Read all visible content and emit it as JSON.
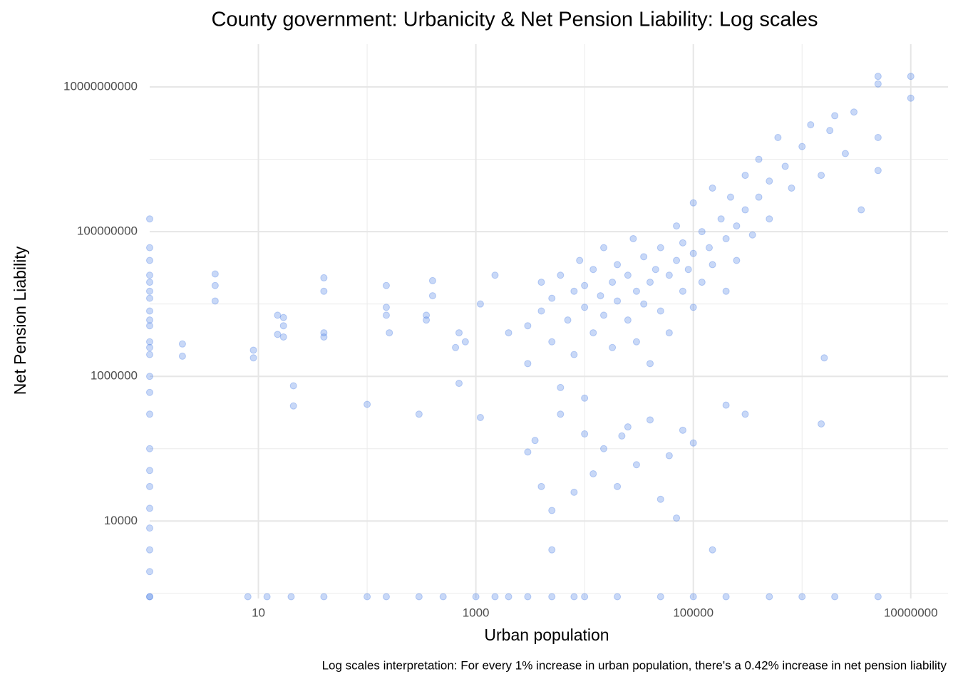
{
  "chart_data": {
    "type": "scatter",
    "title": "County government: Urbanicity & Net Pension Liability: Log scales",
    "x_label": "Urban population",
    "y_label": "Net Pension Liability",
    "caption": "Log scales interpretation: For every 1% increase in urban population, there's a 0.42% increase in net pension liability",
    "x_scale": "log",
    "y_scale": "log",
    "grid": true,
    "color": "#4a7ee6",
    "xlim": [
      1,
      22000000
    ],
    "ylim": [
      850,
      39000000000
    ],
    "xticks": [
      10,
      1000,
      100000,
      10000000
    ],
    "yticks": [
      10000,
      1000000,
      100000000,
      10000000000
    ],
    "x_minor_grid": [
      100,
      10000,
      1000000
    ],
    "y_minor_grid": [
      1000,
      100000,
      10000000,
      1000000000
    ],
    "x": [
      1,
      1,
      1,
      1,
      1,
      1,
      1,
      1,
      1,
      1,
      1,
      1,
      1,
      1,
      1,
      1,
      1,
      1,
      1,
      1,
      1,
      1,
      1,
      1,
      2,
      2,
      4,
      4,
      4,
      9,
      9,
      17,
      17,
      17,
      40,
      40,
      40,
      40,
      15,
      15,
      21,
      21,
      100,
      150,
      150,
      150,
      160,
      300,
      350,
      350,
      400,
      400,
      650,
      700,
      700,
      800,
      1100,
      1100,
      1500,
      2000,
      3000,
      3000,
      4000,
      4000,
      5000,
      5000,
      6000,
      6000,
      7000,
      8000,
      8000,
      9000,
      10000,
      10000,
      10000,
      12000,
      12000,
      14000,
      15000,
      15000,
      18000,
      18000,
      20000,
      20000,
      22000,
      25000,
      25000,
      28000,
      30000,
      30000,
      35000,
      35000,
      40000,
      40000,
      45000,
      50000,
      50000,
      60000,
      60000,
      70000,
      70000,
      80000,
      80000,
      90000,
      100000,
      100000,
      100000,
      120000,
      120000,
      140000,
      150000,
      150000,
      180000,
      200000,
      200000,
      220000,
      250000,
      250000,
      300000,
      300000,
      350000,
      400000,
      400000,
      500000,
      500000,
      600000,
      700000,
      800000,
      1000000,
      1200000,
      1500000,
      1800000,
      2000000,
      2500000,
      3000000,
      3500000,
      5000000,
      5000000,
      10000000,
      10000000,
      5000000,
      5000000,
      3000,
      3500,
      4000,
      5000,
      5000,
      6000,
      8000,
      10000,
      12000,
      15000,
      20000,
      25000,
      30000,
      40000,
      50000,
      60000,
      70000,
      80000,
      100000,
      150000,
      200000,
      300000,
      1600000,
      1500000,
      1,
      8,
      12,
      20,
      40,
      100,
      150,
      300,
      500,
      1000,
      1500,
      2000,
      3000,
      5000,
      8000,
      10000,
      20000,
      50000,
      100000,
      200000,
      500000,
      1000000,
      2000000,
      5000000
    ],
    "values": [
      25000000,
      15000000,
      60000000,
      40000000,
      20000000,
      8000000,
      5000000,
      3000000,
      2000000,
      1000000,
      600000,
      300000,
      100000,
      50000,
      30000,
      15000,
      8000,
      4000,
      2000,
      150000000,
      2500000,
      12000000,
      6000000,
      900,
      2800000,
      1900000,
      11000000,
      18000000,
      26000000,
      2300000,
      1800000,
      6500000,
      3500000,
      5000000,
      23000000,
      15000000,
      3500000,
      4000000,
      7000000,
      3800000,
      740000,
      390000,
      410000,
      18000000,
      9000000,
      7000000,
      4000000,
      300000,
      7000000,
      6000000,
      21000000,
      13000000,
      2500000,
      800000,
      4000000,
      3000000,
      270000,
      10000000,
      25000000,
      4000000,
      5000000,
      1500000,
      20000000,
      8000000,
      3000000,
      12000000,
      25000000,
      700000,
      6000000,
      15000000,
      2000000,
      40000000,
      9000000,
      18000000,
      500000,
      30000000,
      4000000,
      13000000,
      60000000,
      7000000,
      20000000,
      2500000,
      11000000,
      35000000,
      150000,
      6000000,
      25000000,
      80000000,
      15000000,
      3000000,
      45000000,
      10000000,
      20000000,
      1500000,
      30000000,
      8000000,
      60000000,
      25000000,
      4000000,
      120000000,
      40000000,
      15000000,
      70000000,
      30000000,
      50000000,
      9000000,
      250000000,
      100000000,
      20000000,
      60000000,
      35000000,
      400000000,
      150000000,
      80000000,
      15000000,
      300000000,
      120000000,
      40000000,
      600000000,
      200000000,
      90000000,
      1000000000,
      300000000,
      150000000,
      500000000,
      2000000000,
      800000000,
      400000000,
      1500000000,
      3000000000,
      600000000,
      2500000000,
      4000000000,
      1200000000,
      4500000000,
      200000000,
      2000000000,
      700000000,
      14000000000,
      7000000000,
      14000000000,
      11000000000,
      90000,
      130000,
      30000,
      14000,
      4000,
      300000,
      25000,
      160000,
      45000,
      100000,
      30000,
      200000,
      60000,
      250000,
      20000,
      80000,
      11000,
      180000,
      120000,
      4000,
      400000,
      300000,
      1800000,
      220000,
      900,
      900,
      900,
      900,
      900,
      900,
      900,
      900,
      900,
      900,
      900,
      900,
      900,
      900,
      900,
      900,
      900,
      900,
      900,
      900,
      900,
      900,
      900,
      900
    ]
  }
}
